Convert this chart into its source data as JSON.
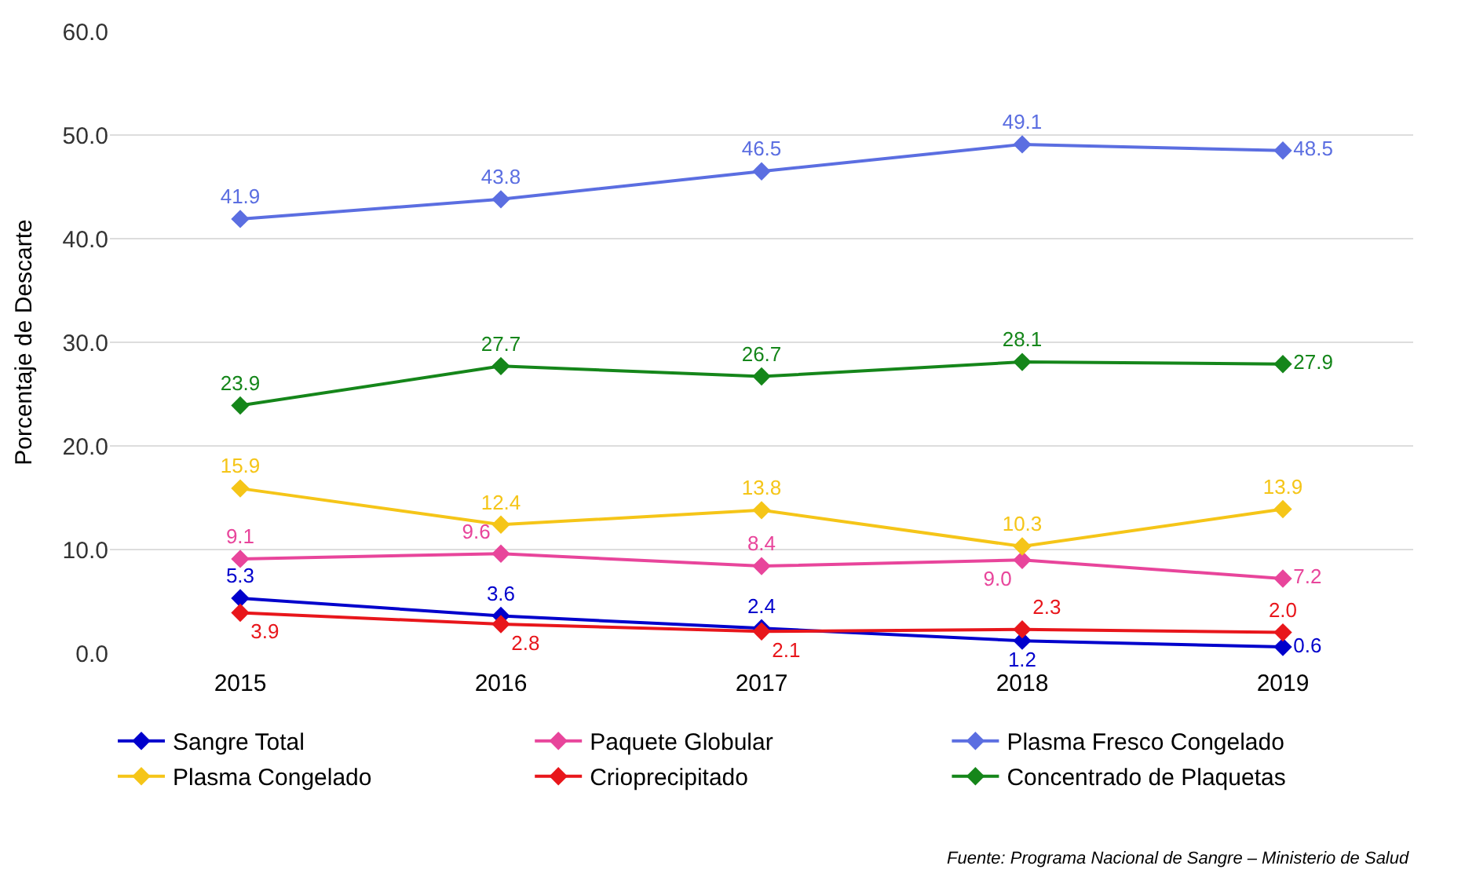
{
  "chart_data": {
    "type": "line",
    "ylabel": "Porcentaje de Descarte",
    "categories": [
      "2015",
      "2016",
      "2017",
      "2018",
      "2019"
    ],
    "series": [
      {
        "name": "Sangre Total",
        "color": "#0000cc",
        "values": [
          5.3,
          3.6,
          2.4,
          1.2,
          0.6
        ],
        "value_labels": [
          "5.3",
          "3.6",
          "2.4",
          "1.2",
          "0.6"
        ]
      },
      {
        "name": "Paquete Globular",
        "color": "#e8459b",
        "values": [
          9.1,
          9.6,
          8.4,
          9.0,
          7.2
        ],
        "value_labels": [
          "9.1",
          "9.6",
          "8.4",
          "9.0",
          "7.2"
        ]
      },
      {
        "name": "Plasma Fresco Congelado",
        "color": "#5b6ee1",
        "values": [
          41.9,
          43.8,
          46.5,
          49.1,
          48.5
        ],
        "value_labels": [
          "41.9",
          "43.8",
          "46.5",
          "49.1",
          "48.5"
        ]
      },
      {
        "name": "Plasma Congelado",
        "color": "#f5c518",
        "values": [
          15.9,
          12.4,
          13.8,
          10.3,
          13.9
        ],
        "value_labels": [
          "15.9",
          "12.4",
          "13.8",
          "10.3",
          "13.9"
        ]
      },
      {
        "name": "Crioprecipitado",
        "color": "#e8161b",
        "values": [
          3.9,
          2.8,
          2.1,
          2.3,
          2.0
        ],
        "value_labels": [
          "3.9",
          "2.8",
          "2.1",
          "2.3",
          "2.0"
        ]
      },
      {
        "name": "Concentrado de Plaquetas",
        "color": "#15861a",
        "values": [
          23.9,
          27.7,
          26.7,
          28.1,
          27.9
        ],
        "value_labels": [
          "23.9",
          "27.7",
          "26.7",
          "28.1",
          "27.9"
        ]
      }
    ],
    "ylim": [
      0,
      60
    ],
    "yticks": [
      {
        "value": 0,
        "label": "0.0"
      },
      {
        "value": 10,
        "label": "10.0"
      },
      {
        "value": 20,
        "label": "20.0"
      },
      {
        "value": 30,
        "label": "30.0"
      },
      {
        "value": 40,
        "label": "40.0"
      },
      {
        "value": 50,
        "label": "50.0"
      },
      {
        "value": 60,
        "label": "60.0"
      }
    ],
    "grid": "y",
    "legend": "bottom",
    "marker": "diamond",
    "line_style": "solid",
    "annotations": [
      "Fuente: Programa Nacional de Sangre – Ministerio de Salud"
    ]
  }
}
